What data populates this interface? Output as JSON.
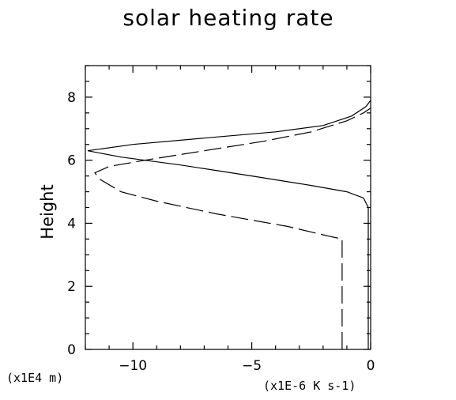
{
  "chart_data": {
    "type": "line",
    "title": "solar heating rate",
    "ylabel": "Height",
    "x_unit": "(x1E-6 K s-1)",
    "y_unit": "(x1E4 m)",
    "xlim": [
      -12,
      0
    ],
    "ylim": [
      0,
      9
    ],
    "x_ticks": [
      {
        "value": -10,
        "label": "−10"
      },
      {
        "value": -5,
        "label": "−5"
      },
      {
        "value": 0,
        "label": "0"
      }
    ],
    "y_ticks": [
      {
        "value": 0,
        "label": "0"
      },
      {
        "value": 2,
        "label": "2"
      },
      {
        "value": 4,
        "label": "4"
      },
      {
        "value": 6,
        "label": "6"
      },
      {
        "value": 8,
        "label": "8"
      }
    ],
    "x_minor_step": 1,
    "y_minor_step": 0.5,
    "grid": false,
    "legend": "none",
    "series": [
      {
        "style": "solid",
        "points": [
          [
            -0.1,
            0
          ],
          [
            -0.1,
            2
          ],
          [
            -0.1,
            4.5
          ],
          [
            -0.3,
            4.8
          ],
          [
            -1.0,
            5.0
          ],
          [
            -2.5,
            5.2
          ],
          [
            -5.0,
            5.5
          ],
          [
            -8.0,
            5.85
          ],
          [
            -10.5,
            6.1
          ],
          [
            -11.9,
            6.3
          ],
          [
            -10.0,
            6.5
          ],
          [
            -7.0,
            6.7
          ],
          [
            -4.0,
            6.9
          ],
          [
            -2.0,
            7.1
          ],
          [
            -0.8,
            7.4
          ],
          [
            -0.2,
            7.7
          ],
          [
            0,
            7.9
          ]
        ]
      },
      {
        "style": "dashed",
        "points": [
          [
            -1.2,
            0
          ],
          [
            -1.2,
            1.0
          ],
          [
            -1.2,
            3.5
          ],
          [
            -1.8,
            3.6
          ],
          [
            -3.5,
            3.9
          ],
          [
            -6.5,
            4.3
          ],
          [
            -9.0,
            4.7
          ],
          [
            -10.5,
            5.0
          ],
          [
            -11.4,
            5.4
          ],
          [
            -11.6,
            5.6
          ],
          [
            -11.0,
            5.8
          ],
          [
            -9.5,
            6.0
          ],
          [
            -7.0,
            6.3
          ],
          [
            -4.5,
            6.6
          ],
          [
            -2.5,
            6.9
          ],
          [
            -1.0,
            7.25
          ],
          [
            -0.3,
            7.5
          ],
          [
            0,
            7.65
          ]
        ]
      }
    ]
  }
}
